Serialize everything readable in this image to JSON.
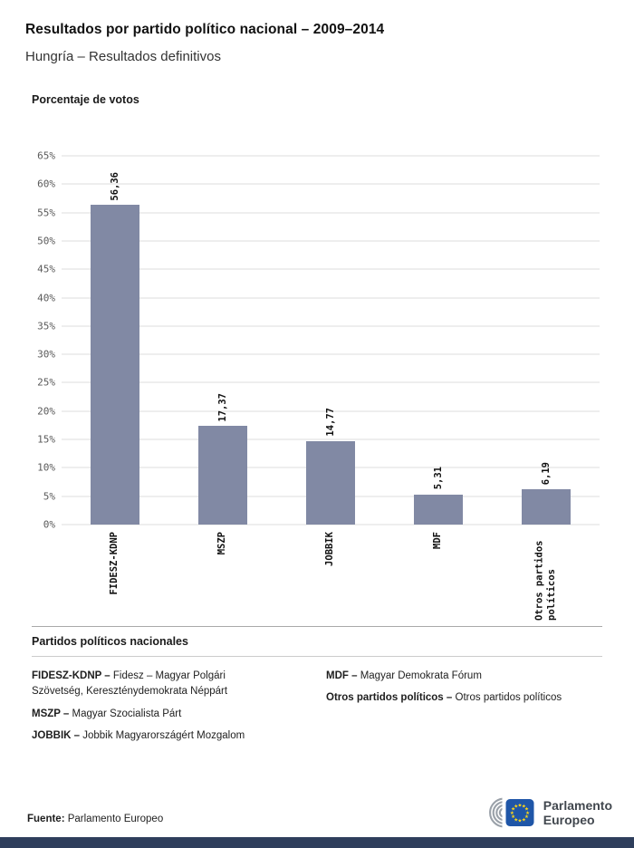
{
  "header": {
    "title": "Resultados por partido político nacional – 2009–2014",
    "subtitle": "Hungría – Resultados definitivos"
  },
  "chart": {
    "heading": "Porcentaje de votos"
  },
  "chart_data": {
    "type": "bar",
    "title": "Porcentaje de votos",
    "categories": [
      "FIDESZ-KDNP",
      "MSZP",
      "JOBBIK",
      "MDF",
      "Otros partidos políticos"
    ],
    "values": [
      56.36,
      17.37,
      14.77,
      5.31,
      6.19
    ],
    "value_labels": [
      "56,36",
      "17,37",
      "14,77",
      "5,31",
      "6,19"
    ],
    "ylim": [
      0,
      65
    ],
    "ytick_step": 5,
    "ytick_suffix": "%",
    "grid": true,
    "legend_position": "none",
    "bar_color": "#8189a4"
  },
  "legend": {
    "heading": "Partidos políticos nacionales",
    "columns": [
      [
        {
          "term": "FIDESZ-KDNP –",
          "desc": "Fidesz – Magyar Polgári Szövetség, Kereszténydemokrata Néppárt"
        },
        {
          "term": "MSZP –",
          "desc": "Magyar Szocialista Párt"
        },
        {
          "term": "JOBBIK –",
          "desc": "Jobbik Magyarországért Mozgalom"
        }
      ],
      [
        {
          "term": "MDF –",
          "desc": "Magyar Demokrata Fórum"
        },
        {
          "term": "Otros partidos políticos –",
          "desc": "Otros partidos políticos"
        }
      ]
    ]
  },
  "footer": {
    "source_label": "Fuente:",
    "source_value": "Parlamento Europeo",
    "logo_line1": "Parlamento",
    "logo_line2": "Europeo"
  },
  "colors": {
    "bar": "#8189a4",
    "grid": "#dcdcdc",
    "bottom_bar": "#2e3e5c",
    "eu_flag_blue": "#1f56a8",
    "eu_star_yellow": "#ffd617",
    "hemicycle_gray": "#9aa1a9"
  }
}
